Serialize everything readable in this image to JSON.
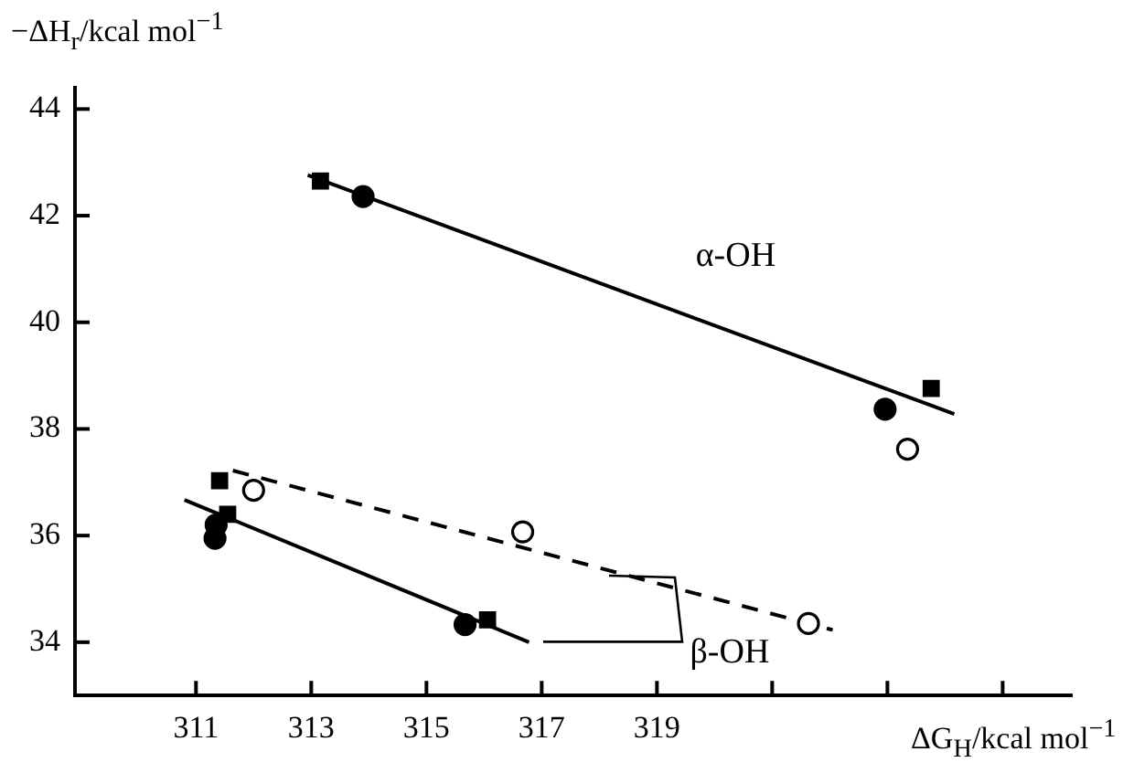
{
  "chart_data": {
    "type": "scatter",
    "xlabel": "ΔG$_{H}$/kcal mol$^{−1}$",
    "ylabel": "−ΔH$_{r}$/kcal mol$^{−1}$",
    "xlim": [
      308.9,
      326.2
    ],
    "ylim": [
      33,
      44.4
    ],
    "xticks": [
      311,
      313,
      315,
      317,
      319,
      {
        "value": 321,
        "label": null
      },
      {
        "value": 323,
        "label": null
      },
      {
        "value": 325,
        "label": null
      }
    ],
    "yticks": [
      34,
      36,
      38,
      40,
      42,
      44
    ],
    "grid": false,
    "legend": false,
    "series": [
      {
        "marker": "square",
        "color": "#000000",
        "x": [
          313.16,
          323.76,
          311.41,
          311.55,
          316.06
        ],
        "values": [
          42.65,
          38.76,
          37.03,
          36.4,
          34.42
        ]
      },
      {
        "marker": "circle",
        "color": "#000000",
        "x": [
          313.9,
          322.96,
          311.35,
          311.33,
          315.67
        ],
        "values": [
          42.36,
          38.37,
          36.2,
          35.95,
          34.33
        ]
      },
      {
        "marker": "circle",
        "color": "#ffffff",
        "x": [
          323.35,
          312.0,
          316.67,
          321.63
        ],
        "values": [
          37.62,
          36.85,
          36.07,
          34.35
        ]
      },
      {
        "type": "line",
        "line_style": "solid",
        "color": "#000000",
        "x": [
          312.94,
          324.16
        ],
        "values": [
          42.76,
          38.28
        ]
      },
      {
        "type": "line",
        "line_style": "solid",
        "color": "#000000",
        "x": [
          310.8,
          316.78
        ],
        "values": [
          36.67,
          34.0
        ]
      },
      {
        "type": "line",
        "line_style": "dashed",
        "color": "#000000",
        "x": [
          311.64,
          322.05
        ],
        "values": [
          37.22,
          34.23
        ]
      }
    ],
    "annotations": [
      "α-OH",
      "β-OH"
    ]
  }
}
